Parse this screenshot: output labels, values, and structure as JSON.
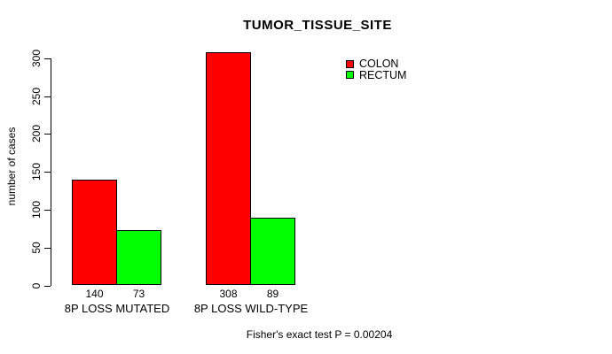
{
  "chart_data": {
    "type": "bar",
    "title": "TUMOR_TISSUE_SITE",
    "ylabel": "number of cases",
    "xlabel": "",
    "categories": [
      "8P LOSS MUTATED",
      "8P LOSS WILD-TYPE"
    ],
    "series": [
      {
        "name": "COLON",
        "color": "#ff0000",
        "values": [
          140,
          308
        ]
      },
      {
        "name": "RECTUM",
        "color": "#00ff00",
        "values": [
          73,
          89
        ]
      }
    ],
    "yticks": [
      "0",
      "50",
      "100",
      "150",
      "200",
      "250",
      "300"
    ],
    "ylim": [
      0,
      300
    ],
    "grid": false,
    "legend_position": "top-right",
    "bar_value_labels_shown": true,
    "footnote": "Fisher's exact test P = 0.00204"
  },
  "colors": {
    "background": "#ffffff",
    "axis": "#000000",
    "text": "#000000",
    "bar_border": "#000000",
    "colon": "#ff0000",
    "rectum": "#00ff00"
  }
}
